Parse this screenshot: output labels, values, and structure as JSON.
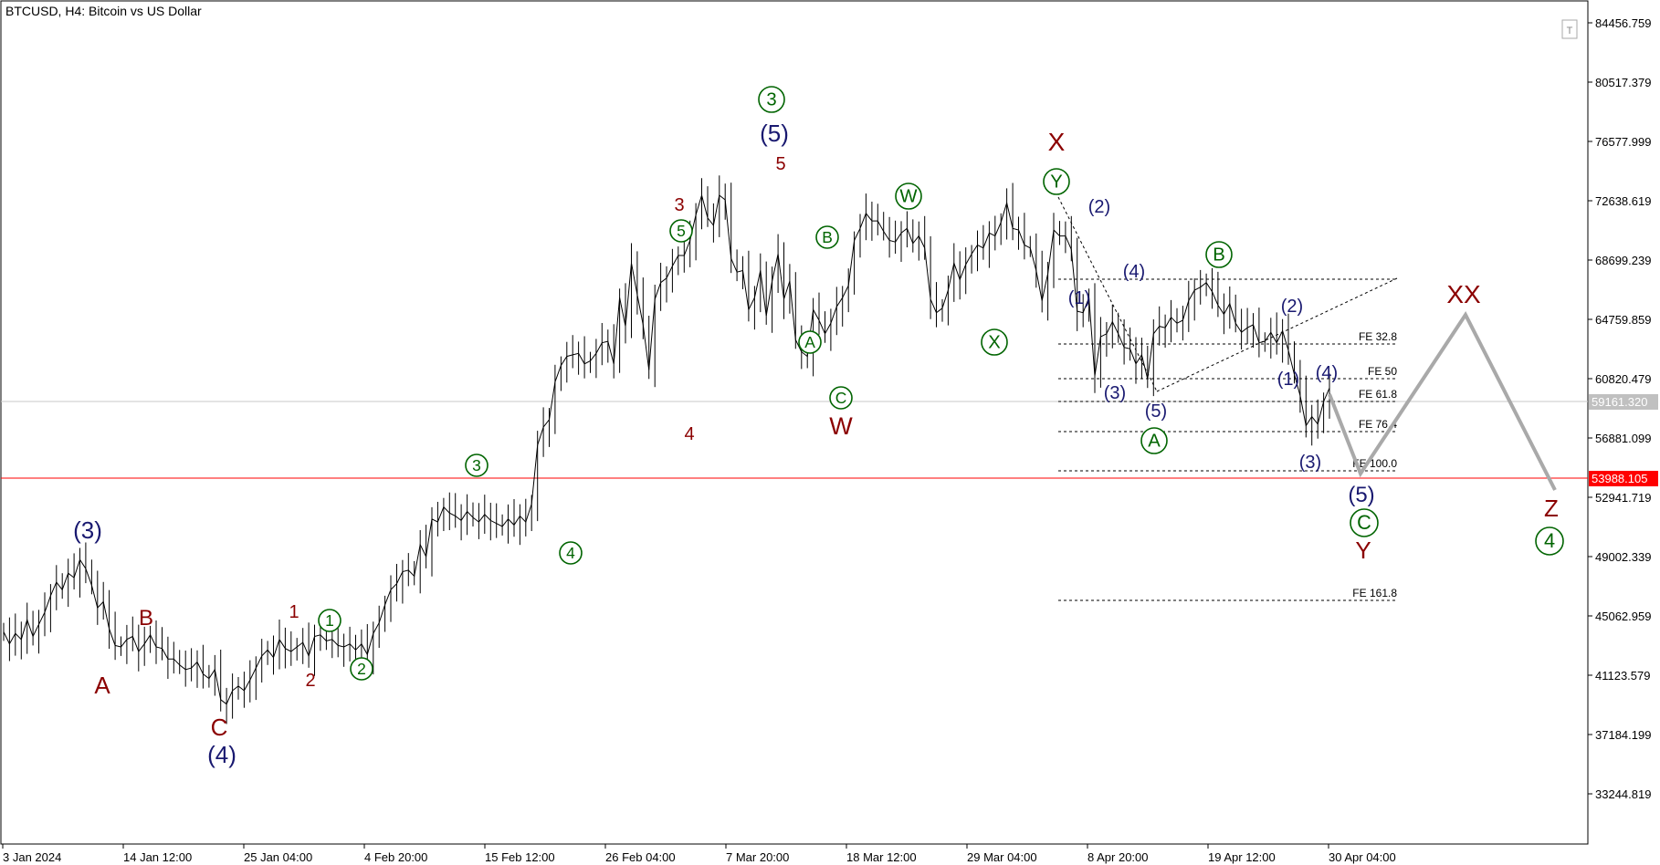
{
  "header": {
    "symbol": "BTCUSD, H4:  Bitcoin vs US Dollar"
  },
  "colors": {
    "price": "#000000",
    "darkred": "#8b0000",
    "navy": "#191970",
    "green": "#006400",
    "projection": "#a9a9a9",
    "support": "#ff0000",
    "current_tag": "#c0c0c0"
  },
  "chart_data": {
    "type": "line",
    "title": "BTCUSD, H4:  Bitcoin vs US Dollar",
    "y_ticks": [
      "84456.759",
      "80517.379",
      "76577.999",
      "72638.619",
      "68699.239",
      "64759.859",
      "60820.479",
      "56881.099",
      "52941.719",
      "49002.339",
      "45062.959",
      "41123.579",
      "37184.199",
      "33244.819"
    ],
    "x_ticks": [
      "3 Jan 2024",
      "14 Jan 12:00",
      "25 Jan 04:00",
      "4 Feb 20:00",
      "15 Feb 12:00",
      "26 Feb 04:00",
      "7 Mar 20:00",
      "18 Mar 12:00",
      "29 Mar 04:00",
      "8 Apr 20:00",
      "19 Apr 12:00",
      "30 Apr 04:00"
    ],
    "current_price": "59161.320",
    "support_level": "53988.105",
    "series": [
      {
        "values": [
          44000,
          43200,
          43900,
          43500,
          44800,
          43700,
          44500,
          45300,
          46400,
          47300,
          46800,
          47900,
          47600,
          48800,
          48200,
          47100,
          45600,
          46000,
          44200,
          43100,
          43000,
          43500,
          43700,
          42700,
          43200,
          43800,
          43000,
          42900,
          42200,
          42200,
          41800,
          41500,
          41600,
          42000,
          41200,
          40900,
          41500,
          39500,
          39200,
          40100,
          40400,
          40100,
          40800,
          41600,
          42400,
          42800,
          42300,
          43500,
          42900,
          42700,
          43000,
          43300,
          42400,
          43700,
          43800,
          43400,
          43500,
          43100,
          43000,
          43200,
          42800,
          43200,
          42500,
          43900,
          44600,
          45800,
          46800,
          47200,
          48000,
          48100,
          47700,
          49800,
          49000,
          51500,
          51300,
          52300,
          51900,
          51700,
          51400,
          52000,
          51600,
          51300,
          51800,
          51400,
          51200,
          51000,
          51500,
          51100,
          51700,
          51300,
          52500,
          56400,
          57600,
          58100,
          60600,
          61700,
          62300,
          62400,
          62500,
          61800,
          62000,
          62500,
          63200,
          63300,
          61800,
          66200,
          64300,
          68500,
          66400,
          64400,
          61400,
          66100,
          67200,
          67500,
          68300,
          69000,
          69000,
          70000,
          71700,
          73000,
          71500,
          71000,
          73000,
          72700,
          68800,
          67900,
          68000,
          65400,
          66200,
          68000,
          65000,
          67300,
          69100,
          66100,
          67300,
          63400,
          62600,
          62300,
          65400,
          64700,
          63800,
          64500,
          65600,
          66200,
          67000,
          70000,
          70800,
          71800,
          71300,
          71300,
          70600,
          70000,
          69900,
          70500,
          70800,
          69800,
          70300,
          69500,
          66100,
          65200,
          65500,
          66700,
          68500,
          67400,
          68400,
          69100,
          69700,
          69500,
          70500,
          70300,
          71200,
          72500,
          70800,
          70700,
          69700,
          69500,
          68000,
          66000,
          67800,
          70700,
          70300,
          70300,
          69400,
          65300,
          65200,
          66200,
          61000,
          63600,
          63800,
          64600,
          63800,
          62900,
          62800,
          61800,
          62400,
          60800,
          63800,
          64300,
          64200,
          64900,
          64500,
          64700,
          66000,
          66700,
          66900,
          67200,
          66600,
          65700,
          65100,
          65800,
          64500,
          63900,
          64200,
          64400,
          63200,
          63300,
          63900,
          63200,
          64000,
          62700,
          61100,
          59700,
          57700,
          58300,
          57800,
          59300,
          60200
        ]
      }
    ],
    "fib_levels": [
      "FE 32.8",
      "FE 50",
      "FE 61.8",
      "FE 76.4",
      "FE 100.0",
      "FE 161.8"
    ],
    "wave_labels": {
      "darkred": [
        "A",
        "B",
        "C",
        "1",
        "2",
        "3",
        "4",
        "5",
        "W",
        "X",
        "Y",
        "XX",
        "Z"
      ],
      "navy": [
        "(3)",
        "(4)",
        "(5)",
        "(1)",
        "(2)",
        "(3)",
        "(4)",
        "(5)",
        "(2)",
        "(1)",
        "(3)",
        "(4)",
        "(5)"
      ],
      "green_circled": [
        "1",
        "2",
        "3",
        "4",
        "5",
        "3",
        "A",
        "B",
        "C",
        "W",
        "X",
        "Y",
        "A",
        "B",
        "C",
        "4"
      ]
    }
  },
  "toolbar": {
    "corner_icon": "T"
  }
}
